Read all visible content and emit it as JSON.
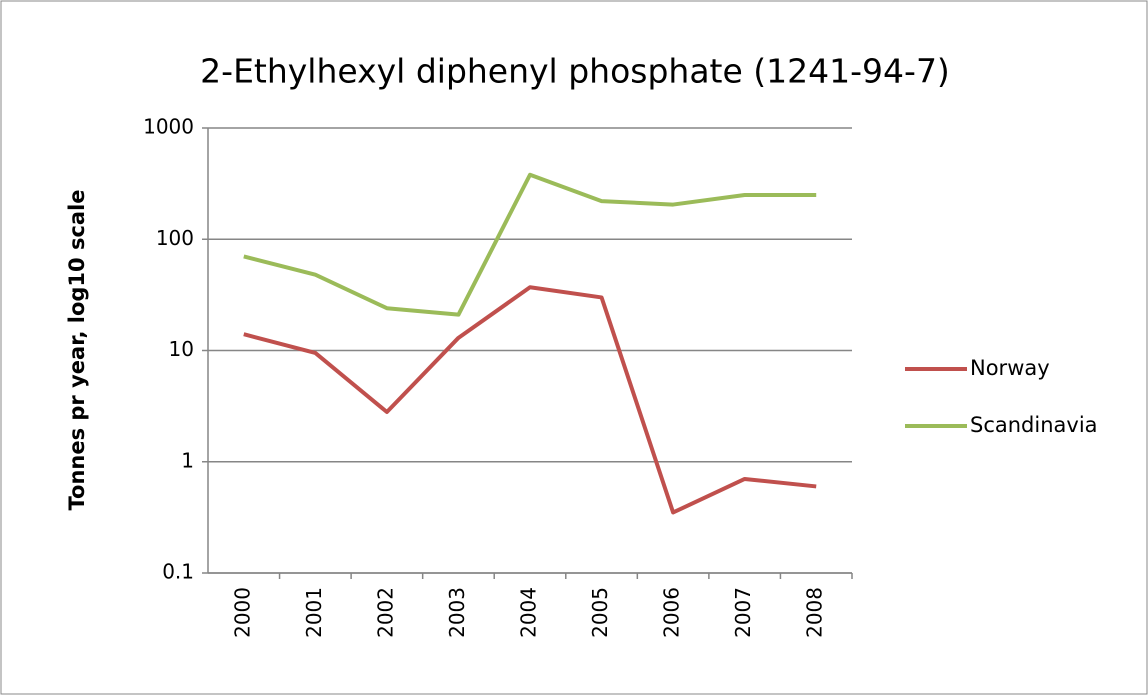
{
  "chart_data": {
    "type": "line",
    "title": "2-Ethylhexyl diphenyl phosphate  (1241-94-7)",
    "y_label": "Tonnes pr year, log10 scale",
    "categories": [
      "2000",
      "2001",
      "2002",
      "2003",
      "2004",
      "2005",
      "2006",
      "2007",
      "2008"
    ],
    "series": [
      {
        "name": "Norway",
        "color": "#c0504d",
        "values": [
          14,
          9.5,
          2.8,
          13,
          37,
          30,
          0.35,
          0.7,
          0.6
        ]
      },
      {
        "name": "Scandinavia",
        "color": "#9bbb59",
        "values": [
          70,
          48,
          24,
          21,
          380,
          220,
          205,
          250,
          250
        ]
      }
    ],
    "ylim": [
      0.1,
      1000
    ],
    "yticks": [
      0.1,
      1,
      10,
      100,
      1000
    ],
    "log_scale": true,
    "grid": true,
    "legend": "right"
  }
}
